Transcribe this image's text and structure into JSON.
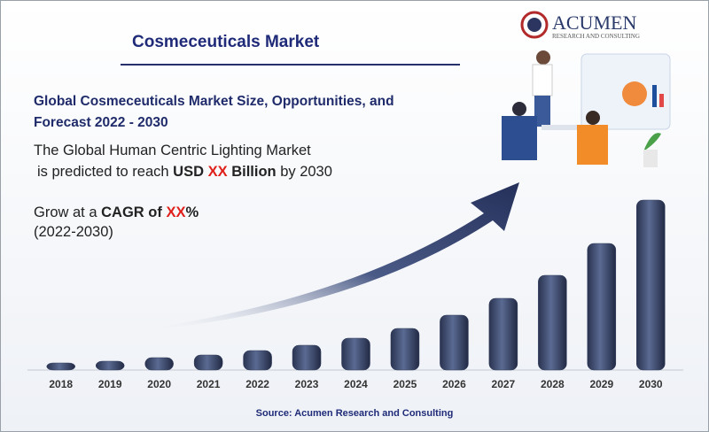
{
  "header": {
    "title": "Cosmeceuticals Market",
    "logo": "ACUMEN",
    "logo_sub": "RESEARCH AND CONSULTING"
  },
  "subtitle": "Global Cosmeceuticals Market Size, Opportunities, and Forecast 2022 - 2030",
  "statement": {
    "line1": "The Global Human Centric Lighting Market",
    "pre": "is predicted to reach ",
    "bold1": "USD ",
    "red": "XX",
    "bold2": " Billion",
    "post": " by 2030"
  },
  "cagr": {
    "pre": "Grow at a ",
    "bold": "CAGR of ",
    "red": "XX",
    "bold2": "%",
    "period": "(2022-2030)"
  },
  "chart_data": {
    "type": "bar",
    "categories": [
      "2018",
      "2019",
      "2020",
      "2021",
      "2022",
      "2023",
      "2024",
      "2025",
      "2026",
      "2027",
      "2028",
      "2029",
      "2030"
    ],
    "values": [
      8,
      10,
      14,
      17,
      22,
      28,
      36,
      47,
      62,
      81,
      107,
      143,
      192
    ],
    "color": "#34405f"
  },
  "source": "Source: Acumen Research and Consulting"
}
